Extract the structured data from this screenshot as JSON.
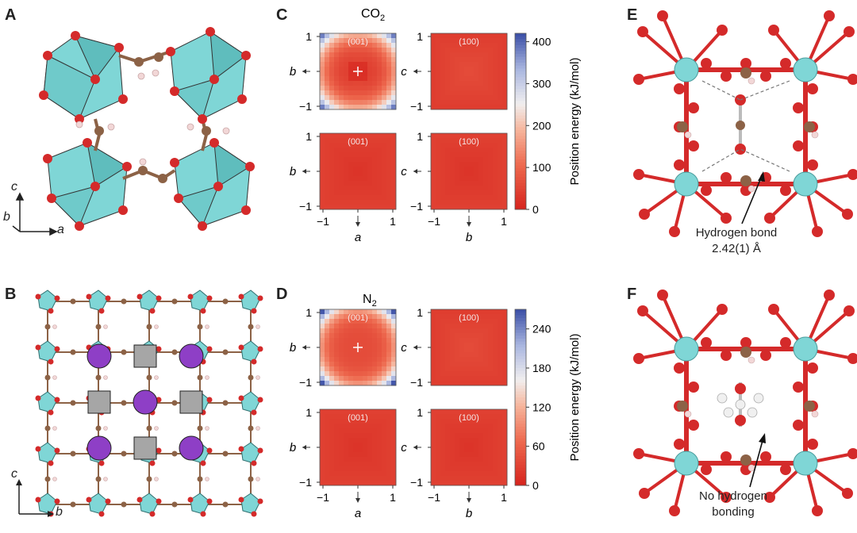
{
  "panels": {
    "A": {
      "label": "A",
      "axes": {
        "vertical": "c",
        "depth": "b",
        "horizontal": "a"
      }
    },
    "B": {
      "label": "B",
      "axes": {
        "vertical": "c",
        "horizontal": "b"
      }
    },
    "C": {
      "label": "C",
      "title_main": "CO",
      "title_sub": "2",
      "subplots": [
        {
          "facet": "(001)",
          "xlabel": "a",
          "ylabel": "b"
        },
        {
          "facet": "(100)",
          "xlabel": "b",
          "ylabel": "c"
        },
        {
          "facet": "(001)",
          "xlabel": "a",
          "ylabel": "b"
        },
        {
          "facet": "(100)",
          "xlabel": "b",
          "ylabel": "c"
        }
      ],
      "colorbar": {
        "label": "Position energy (kJ/mol)",
        "ticks": [
          "0",
          "100",
          "200",
          "300",
          "400"
        ],
        "range": [
          0,
          420
        ]
      }
    },
    "D": {
      "label": "D",
      "title_main": "N",
      "title_sub": "2",
      "subplots": [
        {
          "facet": "(001)",
          "xlabel": "a",
          "ylabel": "b"
        },
        {
          "facet": "(100)",
          "xlabel": "b",
          "ylabel": "c"
        },
        {
          "facet": "(001)",
          "xlabel": "a",
          "ylabel": "b"
        },
        {
          "facet": "(100)",
          "xlabel": "b",
          "ylabel": "c"
        }
      ],
      "colorbar": {
        "label": "Position energy (kJ/mol)",
        "ticks": [
          "0",
          "60",
          "120",
          "180",
          "240"
        ],
        "range": [
          0,
          270
        ]
      }
    },
    "E": {
      "label": "E",
      "annotation_line1": "Hydrogen bond",
      "annotation_line2": "2.42(1) Å"
    },
    "F": {
      "label": "F",
      "annotation_line1": "No hydrogen",
      "annotation_line2": "bonding"
    }
  },
  "tick_labels": [
    "−1",
    "0",
    "1"
  ],
  "colors": {
    "cyan": "#7fd6d6",
    "oxygen": "#d42a2a",
    "carbon": "#8c6246",
    "hydrogen": "#f2d7d7",
    "purple": "#8e3fc6",
    "gray": "#a6a6a6",
    "map_low": "#d8302a",
    "map_high": "#4a5fb0"
  }
}
